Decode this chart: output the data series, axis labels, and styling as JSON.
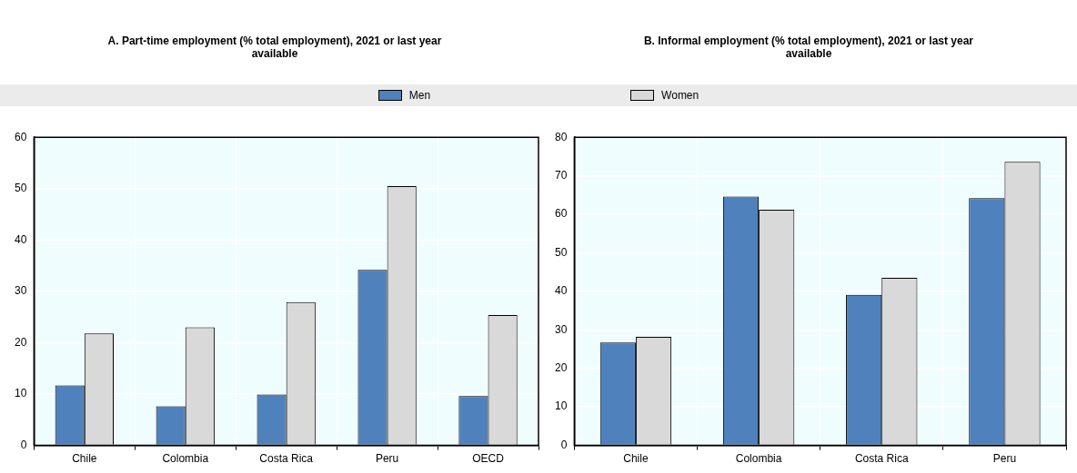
{
  "chart_data": [
    {
      "type": "bar",
      "title": "A. Part-time employment (% total employment),  2021 or last year available",
      "categories": [
        "Chile",
        "Colombia",
        "Costa Rica",
        "Peru",
        "OECD"
      ],
      "series": [
        {
          "name": "Men",
          "color": "#4f81bd",
          "values": [
            11.7,
            7.6,
            9.9,
            34.2,
            9.6
          ]
        },
        {
          "name": "Women",
          "color": "#d9d9d9",
          "values": [
            21.8,
            23,
            27.9,
            50.5,
            25.4
          ]
        }
      ],
      "ylim": [
        0,
        60
      ],
      "yticks": [
        0,
        10,
        20,
        30,
        40,
        50,
        60
      ],
      "grid": true,
      "legend": "top"
    },
    {
      "type": "bar",
      "title": "B. Informal employment (% total employment), 2021 or last year available",
      "categories": [
        "Chile",
        "Colombia",
        "Costa Rica",
        "Peru"
      ],
      "series": [
        {
          "color": "#4f81bd",
          "values": [
            26.7,
            64.6,
            39.1,
            64.2
          ]
        },
        {
          "color": "#d9d9d9",
          "values": [
            28.2,
            61.2,
            43.5,
            73.6
          ]
        }
      ],
      "ylim": [
        0,
        80
      ],
      "yticks": [
        0,
        10,
        20,
        30,
        40,
        50,
        60,
        70,
        80
      ],
      "grid": true
    }
  ]
}
